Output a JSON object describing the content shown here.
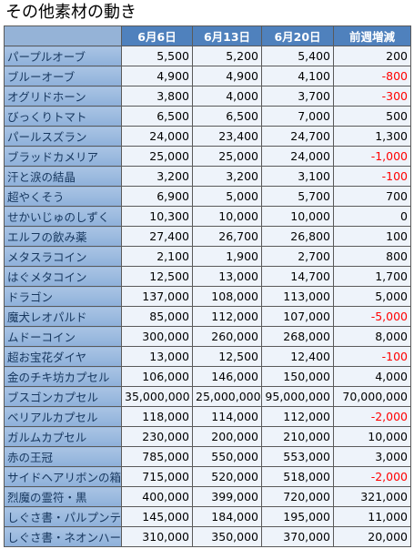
{
  "title": "その他素材の動き",
  "table": {
    "header": [
      "6月6日",
      "6月13日",
      "6月20日",
      "前週増減"
    ],
    "rows": [
      [
        "パープルオーブ",
        "5,500",
        "5,200",
        "5,400",
        "200"
      ],
      [
        "ブルーオーブ",
        "4,900",
        "4,900",
        "4,100",
        "-800"
      ],
      [
        "オグリドホーン",
        "3,800",
        "4,000",
        "3,700",
        "-300"
      ],
      [
        "びっくりトマト",
        "6,500",
        "6,500",
        "7,000",
        "500"
      ],
      [
        "パールスズラン",
        "24,000",
        "23,400",
        "24,700",
        "1,300"
      ],
      [
        "ブラッドカメリア",
        "25,000",
        "25,000",
        "24,000",
        "-1,000"
      ],
      [
        "汗と涙の結晶",
        "3,200",
        "3,200",
        "3,100",
        "-100"
      ],
      [
        "超やくそう",
        "6,900",
        "5,000",
        "5,700",
        "700"
      ],
      [
        "せかいじゅのしずく",
        "10,300",
        "10,000",
        "10,000",
        "0"
      ],
      [
        "エルフの飲み薬",
        "27,400",
        "26,700",
        "26,800",
        "100"
      ],
      [
        "メタスラコイン",
        "2,100",
        "1,900",
        "2,700",
        "800"
      ],
      [
        "はぐメタコイン",
        "12,500",
        "13,000",
        "14,700",
        "1,700"
      ],
      [
        "ドラゴン",
        "137,000",
        "108,000",
        "113,000",
        "5,000"
      ],
      [
        "魔犬レオパルド",
        "85,000",
        "112,000",
        "107,000",
        "-5,000"
      ],
      [
        "ムドーコイン",
        "300,000",
        "260,000",
        "268,000",
        "8,000"
      ],
      [
        "超お宝花ダイヤ",
        "13,000",
        "12,500",
        "12,400",
        "-100"
      ],
      [
        "金のチキ坊カプセル",
        "106,000",
        "146,000",
        "150,000",
        "4,000"
      ],
      [
        "ブスゴンカプセル",
        "35,000,000",
        "25,000,000",
        "95,000,000",
        "70,000,000"
      ],
      [
        "ベリアルカプセル",
        "118,000",
        "114,000",
        "112,000",
        "-2,000"
      ],
      [
        "ガルムカプセル",
        "230,000",
        "200,000",
        "210,000",
        "10,000"
      ],
      [
        "赤の王冠",
        "785,000",
        "550,000",
        "553,000",
        "3,000"
      ],
      [
        "サイドヘアリボンの箱",
        "715,000",
        "520,000",
        "518,000",
        "-2,000"
      ],
      [
        "烈魔の霊符・黒",
        "400,000",
        "399,000",
        "720,000",
        "321,000"
      ],
      [
        "しぐさ書・パルプンテ",
        "145,000",
        "184,000",
        "195,000",
        "11,000"
      ],
      [
        "しぐさ書・ネオンハート",
        "310,000",
        "350,000",
        "370,000",
        "20,000"
      ]
    ]
  }
}
